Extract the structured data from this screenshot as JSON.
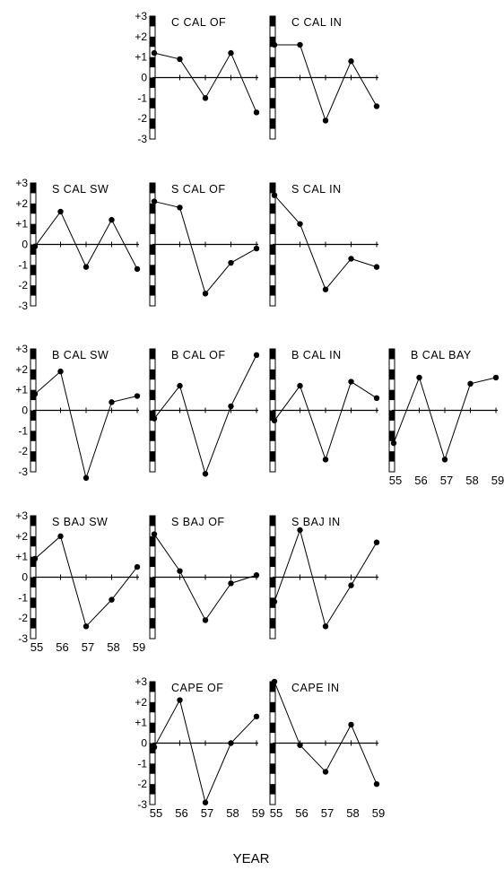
{
  "figure": {
    "x_axis_title": "YEAR",
    "y_tick_labels": [
      "+3",
      "+2",
      "+1",
      "0",
      "-1",
      "-2",
      "-3"
    ],
    "x_tick_labels": [
      "55",
      "56",
      "57",
      "58",
      "59"
    ]
  },
  "chart_data": [
    {
      "type": "line",
      "title": "C CAL OF",
      "x": [
        1955,
        1956,
        1957,
        1958,
        1959
      ],
      "values": [
        1.2,
        0.9,
        -1.0,
        1.2,
        -1.7
      ],
      "ylim": [
        -3,
        3
      ]
    },
    {
      "type": "line",
      "title": "C CAL IN",
      "x": [
        1955,
        1956,
        1957,
        1958,
        1959
      ],
      "values": [
        1.6,
        1.6,
        -2.1,
        0.8,
        -1.4
      ],
      "ylim": [
        -3,
        3
      ]
    },
    {
      "type": "line",
      "title": "S CAL SW",
      "x": [
        1955,
        1956,
        1957,
        1958,
        1959
      ],
      "values": [
        -0.1,
        1.6,
        -1.1,
        1.2,
        -1.2
      ],
      "ylim": [
        -3,
        3
      ]
    },
    {
      "type": "line",
      "title": "S CAL OF",
      "x": [
        1955,
        1956,
        1957,
        1958,
        1959
      ],
      "values": [
        2.1,
        1.8,
        -2.4,
        -0.9,
        -0.2
      ],
      "ylim": [
        -3,
        3
      ]
    },
    {
      "type": "line",
      "title": "S CAL IN",
      "x": [
        1955,
        1956,
        1957,
        1958,
        1959
      ],
      "values": [
        2.4,
        1.0,
        -2.2,
        -0.7,
        -1.1
      ],
      "ylim": [
        -3,
        3
      ]
    },
    {
      "type": "line",
      "title": "B CAL SW",
      "x": [
        1955,
        1956,
        1957,
        1958,
        1959
      ],
      "values": [
        0.8,
        1.9,
        -3.3,
        0.4,
        0.7
      ],
      "ylim": [
        -3,
        3
      ]
    },
    {
      "type": "line",
      "title": "B CAL OF",
      "x": [
        1955,
        1956,
        1957,
        1958,
        1959
      ],
      "values": [
        -0.4,
        1.2,
        -3.1,
        0.2,
        2.7
      ],
      "ylim": [
        -3,
        3
      ]
    },
    {
      "type": "line",
      "title": "B CAL IN",
      "x": [
        1955,
        1956,
        1957,
        1958,
        1959
      ],
      "values": [
        -0.5,
        1.2,
        -2.4,
        1.4,
        0.6
      ],
      "ylim": [
        -3,
        3
      ]
    },
    {
      "type": "line",
      "title": "B CAL BAY",
      "x": [
        1955,
        1956,
        1957,
        1958,
        1959
      ],
      "values": [
        -1.6,
        1.6,
        -2.4,
        1.3,
        1.6
      ],
      "ylim": [
        -3,
        3
      ]
    },
    {
      "type": "line",
      "title": "S BAJ SW",
      "x": [
        1955,
        1956,
        1957,
        1958,
        1959
      ],
      "values": [
        0.9,
        2.0,
        -2.4,
        -1.1,
        0.5
      ],
      "ylim": [
        -3,
        3
      ]
    },
    {
      "type": "line",
      "title": "S BAJ OF",
      "x": [
        1955,
        1956,
        1957,
        1958,
        1959
      ],
      "values": [
        2.1,
        0.3,
        -2.1,
        -0.3,
        0.1
      ],
      "ylim": [
        -3,
        3
      ]
    },
    {
      "type": "line",
      "title": "S BAJ IN",
      "x": [
        1955,
        1956,
        1957,
        1958,
        1959
      ],
      "values": [
        -1.2,
        2.3,
        -2.4,
        -0.4,
        1.7
      ],
      "ylim": [
        -3,
        3
      ]
    },
    {
      "type": "line",
      "title": "CAPE OF",
      "x": [
        1955,
        1956,
        1957,
        1958,
        1959
      ],
      "values": [
        -0.2,
        2.1,
        -2.9,
        0.0,
        1.3
      ],
      "ylim": [
        -3,
        3
      ]
    },
    {
      "type": "line",
      "title": "CAPE IN",
      "x": [
        1955,
        1956,
        1957,
        1958,
        1959
      ],
      "values": [
        3.0,
        -0.1,
        -1.4,
        0.9,
        -2.0
      ],
      "ylim": [
        -3,
        3
      ]
    }
  ]
}
